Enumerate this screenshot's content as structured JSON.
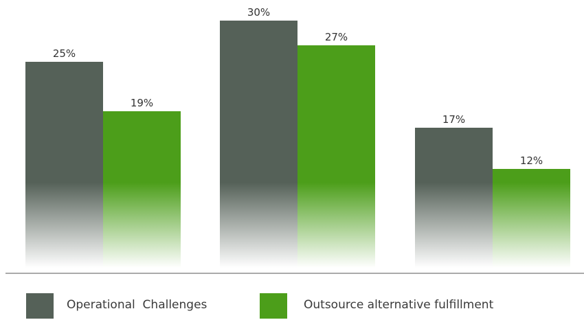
{
  "chart_data": {
    "type": "bar",
    "categories": [
      "",
      "",
      ""
    ],
    "series": [
      {
        "name": "Operational  Challenges",
        "values": [
          25,
          30,
          17
        ],
        "labels": [
          "25%",
          "30%",
          "17%"
        ],
        "color": "#556158"
      },
      {
        "name": "Outsource alternative fulfillment",
        "values": [
          19,
          27,
          12
        ],
        "labels": [
          "19%",
          "27%",
          "12%"
        ],
        "color": "#4c9e1a"
      }
    ],
    "title": "",
    "xlabel": "",
    "ylabel": "",
    "ylim": [
      0,
      30
    ],
    "grid": false,
    "legend_position": "bottom"
  }
}
